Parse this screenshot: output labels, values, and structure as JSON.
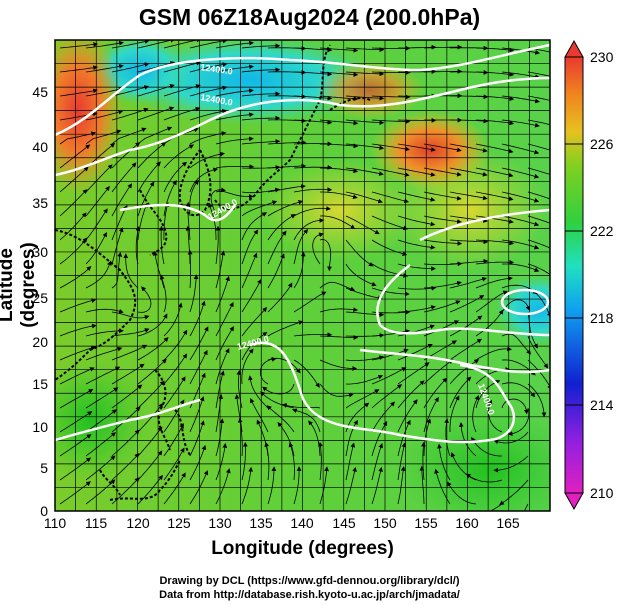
{
  "title": "GSM 06Z18Aug2024 (200.0hPa)",
  "xlabel": "Longitude (degrees)",
  "ylabel": "Latitude  (degrees)",
  "credit1": "Drawing by DCL (https://www.gfd-dennou.org/library/dcl/)",
  "credit2": "Data from http://database.rish.kyoto-u.ac.jp/arch/jmadata/",
  "x_ticks": [
    "110",
    "115",
    "120",
    "125",
    "130",
    "135",
    "140",
    "145",
    "150",
    "155",
    "160",
    "165"
  ],
  "y_ticks": [
    "0",
    "5",
    "10",
    "15",
    "20",
    "25",
    "30",
    "35",
    "40",
    "45"
  ],
  "colorbar_labels": [
    "230",
    "226",
    "222",
    "218",
    "214",
    "210"
  ],
  "contour_labels": [
    "12400.0",
    "12400.0",
    "12400.0",
    "12400.0",
    "12400.0"
  ],
  "colors": {
    "warm": "#e8443a",
    "orange": "#f0a020",
    "yellow": "#d8d830",
    "green": "#30c030",
    "cyan": "#20d0d0",
    "blue": "#1060e0",
    "magenta": "#e020c0"
  },
  "map_data": {
    "lon_range": [
      110,
      170
    ],
    "lat_range": [
      0,
      50
    ],
    "variable": "temperature (K) with streamlines and geopotential height contours",
    "level_hPa": 200.0
  }
}
